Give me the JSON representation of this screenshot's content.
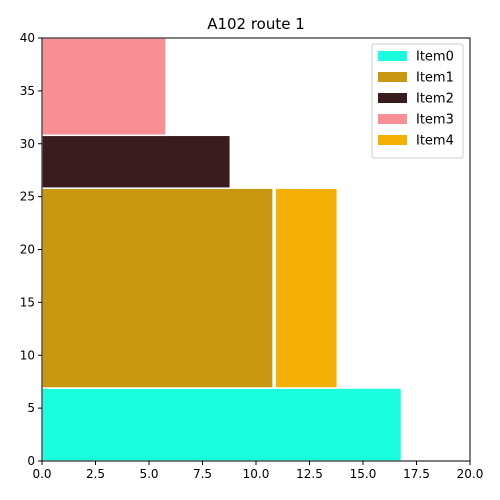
{
  "chart_data": {
    "type": "bar",
    "title": "A102 route 1",
    "xlabel": "",
    "ylabel": "",
    "xlim": [
      0,
      20
    ],
    "ylim": [
      0,
      40
    ],
    "xticks": [
      "0.0",
      "2.5",
      "5.0",
      "7.5",
      "10.0",
      "12.5",
      "15.0",
      "17.5",
      "20.0"
    ],
    "yticks": [
      "0",
      "5",
      "10",
      "15",
      "20",
      "25",
      "30",
      "35",
      "40"
    ],
    "grid": false,
    "legend_position": "top-right",
    "series": [
      {
        "name": "Item0",
        "color": "#19FFDD",
        "rects": [
          {
            "x0": 0,
            "x1": 16.8,
            "y0": 0,
            "y1": 6.9
          }
        ]
      },
      {
        "name": "Item1",
        "color": "#C9970F",
        "rects": [
          {
            "x0": 0,
            "x1": 10.8,
            "y0": 6.9,
            "y1": 25.8
          }
        ]
      },
      {
        "name": "Item2",
        "color": "#3A1C20",
        "rects": [
          {
            "x0": 0,
            "x1": 8.8,
            "y0": 25.8,
            "y1": 30.8
          }
        ]
      },
      {
        "name": "Item3",
        "color": "#F98F95",
        "rects": [
          {
            "x0": 0,
            "x1": 5.8,
            "y0": 30.8,
            "y1": 40
          }
        ]
      },
      {
        "name": "Item4",
        "color": "#F5B005",
        "rects": [
          {
            "x0": 10.9,
            "x1": 13.8,
            "y0": 6.9,
            "y1": 25.8
          }
        ]
      }
    ]
  }
}
